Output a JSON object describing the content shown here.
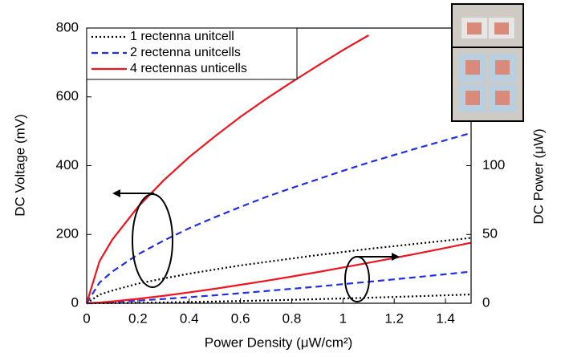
{
  "chart_data": {
    "type": "line",
    "xlabel": "Power Density (μW/cm²)",
    "ylabel": "DC Voltage (mV)",
    "y2label": "DC Power (μW)",
    "x": [
      0,
      0.05,
      0.1,
      0.2,
      0.3,
      0.4,
      0.5,
      0.6,
      0.7,
      0.8,
      0.9,
      1.0,
      1.1,
      1.2,
      1.3,
      1.4,
      1.5
    ],
    "xlim": [
      0,
      1.5
    ],
    "xticks": [
      0,
      0.2,
      0.4,
      0.6,
      0.8,
      1,
      1.2,
      1.4
    ],
    "ylim": [
      0,
      800
    ],
    "yticks": [
      0,
      200,
      400,
      600,
      800
    ],
    "y2lim": [
      0,
      200
    ],
    "y2ticks": [
      0,
      50,
      100
    ],
    "series": [
      {
        "name": "1 rectenna unitcell",
        "color": "#000000",
        "linestyle": "dotted",
        "values": [
          0,
          25,
          37,
          57,
          72,
          86,
          98,
          110,
          120,
          130,
          140,
          149,
          158,
          166,
          174,
          182,
          190
        ]
      },
      {
        "name": "2 rectenna unitcells",
        "color": "#1f2ee8",
        "linestyle": "dashed",
        "values": [
          0,
          60,
          92,
          142,
          182,
          218,
          250,
          280,
          309,
          335,
          360,
          385,
          409,
          431,
          453,
          474,
          495
        ]
      },
      {
        "name": "4 rectennas unticells",
        "color": "#f0141e",
        "linestyle": "solid",
        "values": [
          0,
          122,
          185,
          280,
          357,
          425,
          485,
          542,
          594,
          643,
          690,
          736,
          779,
          null,
          null,
          null,
          null
        ]
      },
      {
        "color": "#000000",
        "linestyle": "dotted",
        "axis": "y2",
        "values": [
          0,
          0.04,
          0.11,
          0.31,
          0.57,
          0.88,
          1.23,
          1.62,
          2.04,
          2.49,
          2.97,
          3.48,
          4.02,
          4.58,
          5.16,
          5.77,
          6.4
        ]
      },
      {
        "color": "#1f2ee8",
        "linestyle": "dashed",
        "axis": "y2",
        "values": [
          0,
          0.3,
          0.8,
          1.9,
          3.1,
          4.4,
          5.8,
          7.3,
          8.9,
          10.5,
          12.1,
          13.9,
          15.6,
          17.4,
          19.2,
          21.1,
          23
        ]
      },
      {
        "color": "#f0141e",
        "linestyle": "solid",
        "axis": "y2",
        "values": [
          0,
          0.5,
          1.3,
          3.2,
          5.4,
          7.9,
          10.5,
          13.4,
          16.3,
          19.4,
          22.6,
          26.0,
          29.4,
          32.9,
          36.5,
          40.2,
          44
        ]
      }
    ]
  }
}
